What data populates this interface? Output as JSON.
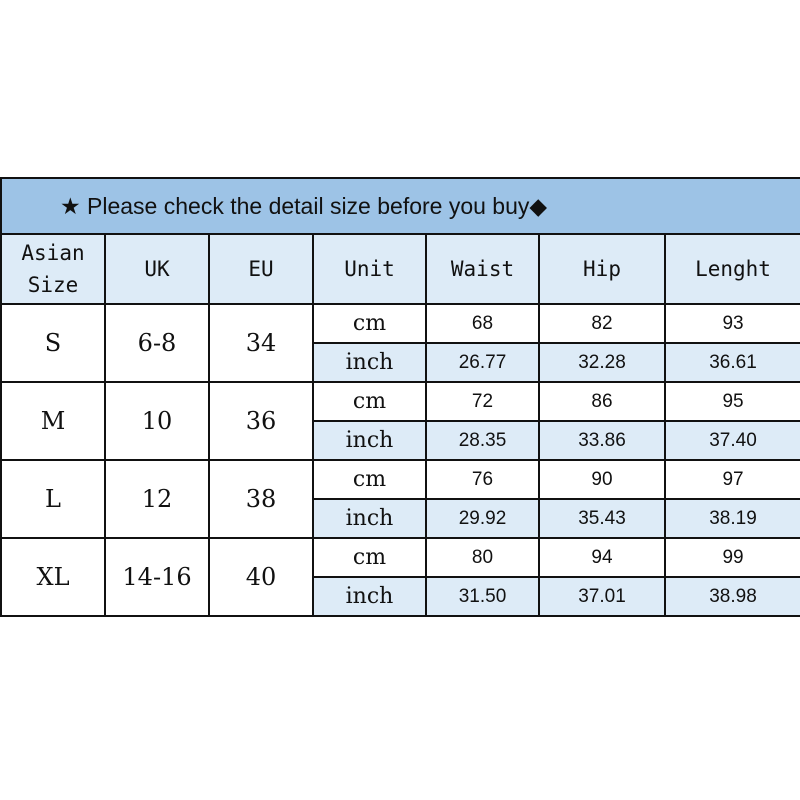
{
  "title": {
    "star": "★",
    "text": "Please check the detail size before you buy",
    "diamond": "◆"
  },
  "headers": [
    "Asian Size",
    "UK",
    "EU",
    "Unit",
    "Waist",
    "Hip",
    "Lenght"
  ],
  "colors": {
    "title_bg": "#9dc3e6",
    "header_bg": "#ddebf7"
  },
  "rows": [
    {
      "size": "S",
      "uk": "6-8",
      "eu": "34",
      "cm": {
        "unit": "cm",
        "waist": "68",
        "hip": "82",
        "length": "93"
      },
      "inch": {
        "unit": "inch",
        "waist": "26.77",
        "hip": "32.28",
        "length": "36.61"
      }
    },
    {
      "size": "M",
      "uk": "10",
      "eu": "36",
      "cm": {
        "unit": "cm",
        "waist": "72",
        "hip": "86",
        "length": "95"
      },
      "inch": {
        "unit": "inch",
        "waist": "28.35",
        "hip": "33.86",
        "length": "37.40"
      }
    },
    {
      "size": "L",
      "uk": "12",
      "eu": "38",
      "cm": {
        "unit": "cm",
        "waist": "76",
        "hip": "90",
        "length": "97"
      },
      "inch": {
        "unit": "inch",
        "waist": "29.92",
        "hip": "35.43",
        "length": "38.19"
      }
    },
    {
      "size": "XL",
      "uk": "14-16",
      "eu": "40",
      "cm": {
        "unit": "cm",
        "waist": "80",
        "hip": "94",
        "length": "99"
      },
      "inch": {
        "unit": "inch",
        "waist": "31.50",
        "hip": "37.01",
        "length": "38.98"
      }
    }
  ]
}
